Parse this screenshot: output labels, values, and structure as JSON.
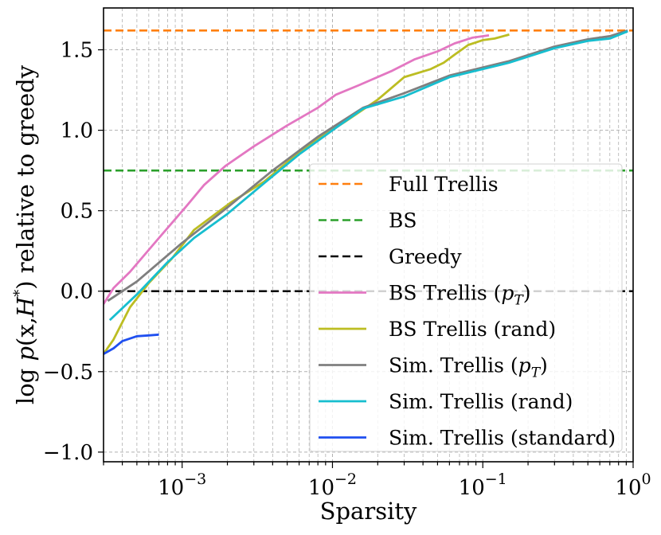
{
  "chart_data": {
    "type": "line",
    "xscale": "log",
    "xlabel": "Sparsity",
    "ylabel_parts": {
      "prefix": "log ",
      "p": "p",
      "args": "(x,",
      "H": "H",
      "star": "*",
      "close": ")",
      "suffix": " relative to greedy"
    },
    "xlim": [
      0.0003,
      1.0
    ],
    "ylim": [
      -1.06,
      1.76
    ],
    "grid": true,
    "legend_position": "lower-right",
    "x_ticks": [
      {
        "value": 0.001,
        "base": "10",
        "exp": "−3"
      },
      {
        "value": 0.01,
        "base": "10",
        "exp": "−2"
      },
      {
        "value": 0.1,
        "base": "10",
        "exp": "−1"
      },
      {
        "value": 1.0,
        "base": "10",
        "exp": "0"
      }
    ],
    "y_ticks": [
      {
        "value": 1.5,
        "label": "1.5"
      },
      {
        "value": 1.0,
        "label": "1.0"
      },
      {
        "value": 0.5,
        "label": "0.5"
      },
      {
        "value": 0.0,
        "label": "0.0"
      },
      {
        "value": -0.5,
        "label": "−0.5"
      },
      {
        "value": -1.0,
        "label": "−1.0"
      }
    ],
    "series": [
      {
        "name": "Full Trellis",
        "color": "#ff7f0e",
        "style": "dashed",
        "hline": 1.62
      },
      {
        "name": "BS",
        "color": "#2ca02c",
        "style": "dashed",
        "hline": 0.75
      },
      {
        "name": "Greedy",
        "color": "#000000",
        "style": "dashed",
        "hline": 0.0
      },
      {
        "name": "BS Trellis (",
        "sub": "p",
        "subT": "T",
        "close": ")",
        "color": "#e377c2",
        "style": "solid",
        "points": [
          [
            0.0003,
            -0.08
          ],
          [
            0.00035,
            0.02
          ],
          [
            0.00045,
            0.12
          ],
          [
            0.0007,
            0.33
          ],
          [
            0.00105,
            0.52
          ],
          [
            0.0014,
            0.66
          ],
          [
            0.00195,
            0.78
          ],
          [
            0.003,
            0.9
          ],
          [
            0.005,
            1.03
          ],
          [
            0.008,
            1.14
          ],
          [
            0.0105,
            1.22
          ],
          [
            0.015,
            1.28
          ],
          [
            0.025,
            1.37
          ],
          [
            0.035,
            1.44
          ],
          [
            0.05,
            1.49
          ],
          [
            0.065,
            1.54
          ],
          [
            0.085,
            1.575
          ],
          [
            0.11,
            1.59
          ]
        ]
      },
      {
        "name": "BS Trellis (rand)",
        "color": "#bcbd22",
        "style": "solid",
        "points": [
          [
            0.0003,
            -0.39
          ],
          [
            0.00035,
            -0.3
          ],
          [
            0.00045,
            -0.1
          ],
          [
            0.0006,
            0.05
          ],
          [
            0.00085,
            0.2
          ],
          [
            0.0012,
            0.38
          ],
          [
            0.0021,
            0.55
          ],
          [
            0.0035,
            0.68
          ],
          [
            0.005,
            0.8
          ],
          [
            0.0075,
            0.93
          ],
          [
            0.012,
            1.05
          ],
          [
            0.02,
            1.19
          ],
          [
            0.03,
            1.33
          ],
          [
            0.045,
            1.38
          ],
          [
            0.055,
            1.42
          ],
          [
            0.065,
            1.47
          ],
          [
            0.08,
            1.53
          ],
          [
            0.1,
            1.56
          ],
          [
            0.12,
            1.57
          ],
          [
            0.15,
            1.595
          ]
        ]
      },
      {
        "name": "Sim. Trellis (",
        "sub": "p",
        "subT": "T",
        "close": ")",
        "color": "#7f7f7f",
        "style": "solid",
        "points": [
          [
            0.00032,
            -0.06
          ],
          [
            0.0005,
            0.06
          ],
          [
            0.001,
            0.3
          ],
          [
            0.002,
            0.52
          ],
          [
            0.004,
            0.75
          ],
          [
            0.008,
            0.96
          ],
          [
            0.016,
            1.14
          ],
          [
            0.03,
            1.23
          ],
          [
            0.06,
            1.34
          ],
          [
            0.15,
            1.43
          ],
          [
            0.3,
            1.52
          ],
          [
            0.5,
            1.565
          ],
          [
            0.7,
            1.585
          ],
          [
            0.92,
            1.62
          ]
        ]
      },
      {
        "name": "Sim. Trellis (rand)",
        "color": "#17becf",
        "style": "solid",
        "points": [
          [
            0.00033,
            -0.18
          ],
          [
            0.0005,
            -0.02
          ],
          [
            0.0008,
            0.18
          ],
          [
            0.0012,
            0.33
          ],
          [
            0.002,
            0.48
          ],
          [
            0.0035,
            0.67
          ],
          [
            0.006,
            0.85
          ],
          [
            0.01,
            1.0
          ],
          [
            0.016,
            1.135
          ],
          [
            0.03,
            1.21
          ],
          [
            0.06,
            1.33
          ],
          [
            0.15,
            1.42
          ],
          [
            0.3,
            1.51
          ],
          [
            0.5,
            1.555
          ],
          [
            0.7,
            1.57
          ],
          [
            0.92,
            1.615
          ]
        ]
      },
      {
        "name": "Sim. Trellis (standard)",
        "color": "#1f4ff0",
        "style": "solid",
        "points": [
          [
            0.0003,
            -0.39
          ],
          [
            0.00035,
            -0.355
          ],
          [
            0.0004,
            -0.31
          ],
          [
            0.0005,
            -0.28
          ],
          [
            0.0006,
            -0.275
          ],
          [
            0.0007,
            -0.27
          ]
        ]
      }
    ]
  }
}
